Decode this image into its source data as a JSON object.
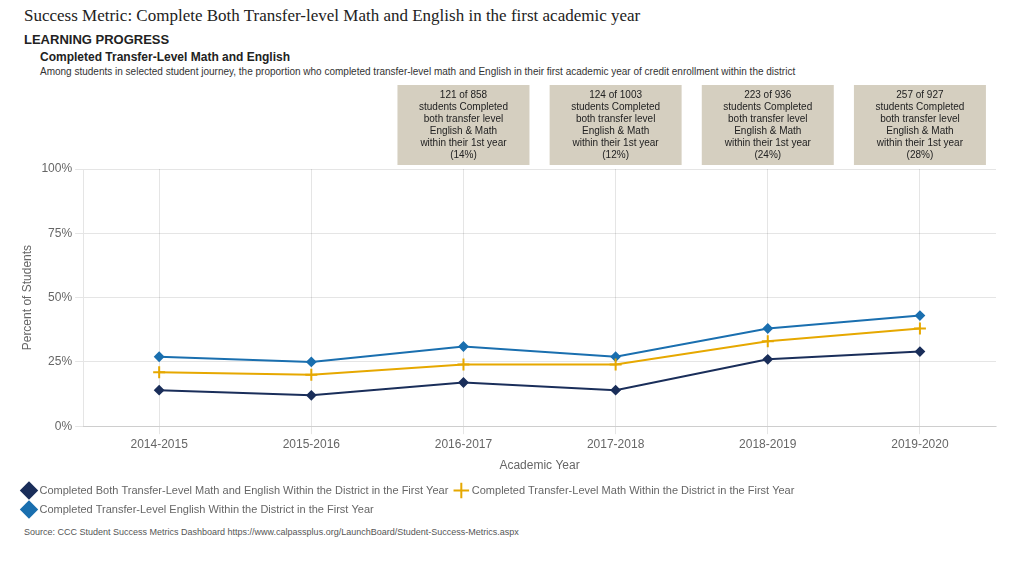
{
  "chart_data": {
    "type": "line",
    "title": "Success Metric: Complete Both Transfer-level Math and English in the first academic year",
    "section_header": "LEARNING PROGRESS",
    "chart_title": "Completed Transfer-Level Math and English",
    "subtitle": "Among students in selected student journey, the proportion who completed transfer-level math and English in their first academic year of credit enrollment within the district",
    "xlabel": "Academic Year",
    "ylabel": "Percent of Students",
    "source": "Source: CCC Student Success Metrics Dashboard https://www.calpassplus.org/LaunchBoard/Student-Success-Metrics.aspx",
    "categories": [
      "2014-2015",
      "2015-2016",
      "2016-2017",
      "2017-2018",
      "2018-2019",
      "2019-2020"
    ],
    "series": [
      {
        "name": "Completed Both Transfer-Level Math and English Within the District in the First Year",
        "color": "#1a2e5a",
        "marker": "diamond",
        "values": [
          14,
          12,
          17,
          14,
          26,
          29
        ]
      },
      {
        "name": "Completed Transfer-Level Math Within the District in the First Year",
        "color": "#e6a800",
        "marker": "plus",
        "values": [
          21,
          20,
          24,
          24,
          33,
          38
        ]
      },
      {
        "name": "Completed Transfer-Level English Within the District in the First Year",
        "color": "#1a6faf",
        "marker": "diamond",
        "values": [
          27,
          25,
          31,
          27,
          38,
          43
        ]
      }
    ],
    "ylim": [
      0,
      100
    ],
    "yticks": [
      {
        "value": 0,
        "label": "0%"
      },
      {
        "value": 25,
        "label": "25%"
      },
      {
        "value": 50,
        "label": "50%"
      },
      {
        "value": 75,
        "label": "75%"
      },
      {
        "value": 100,
        "label": "100%"
      }
    ],
    "grid": true,
    "legend": "lower left",
    "annotations": [
      {
        "category": "2016-2017",
        "color": "#d5cfc0",
        "text": "121 of 858\nstudents Completed\nboth transfer level\nEnglish & Math\nwithin their 1st year\n(14%)"
      },
      {
        "category": "2017-2018",
        "color": "#d5cfc0",
        "text": "124 of 1003\nstudents Completed\nboth transfer level\nEnglish & Math\nwithin their 1st year\n(12%)"
      },
      {
        "category": "2018-2019",
        "color": "#d5cfc0",
        "text": "223 of 936\nstudents Completed\nboth transfer level\nEnglish & Math\nwithin their 1st year\n(24%)"
      },
      {
        "category": "2019-2020",
        "color": "#d5cfc0",
        "text": "257 of 927\nstudents Completed\nboth transfer level\nEnglish & Math\nwithin their 1st year\n(28%)"
      }
    ]
  }
}
